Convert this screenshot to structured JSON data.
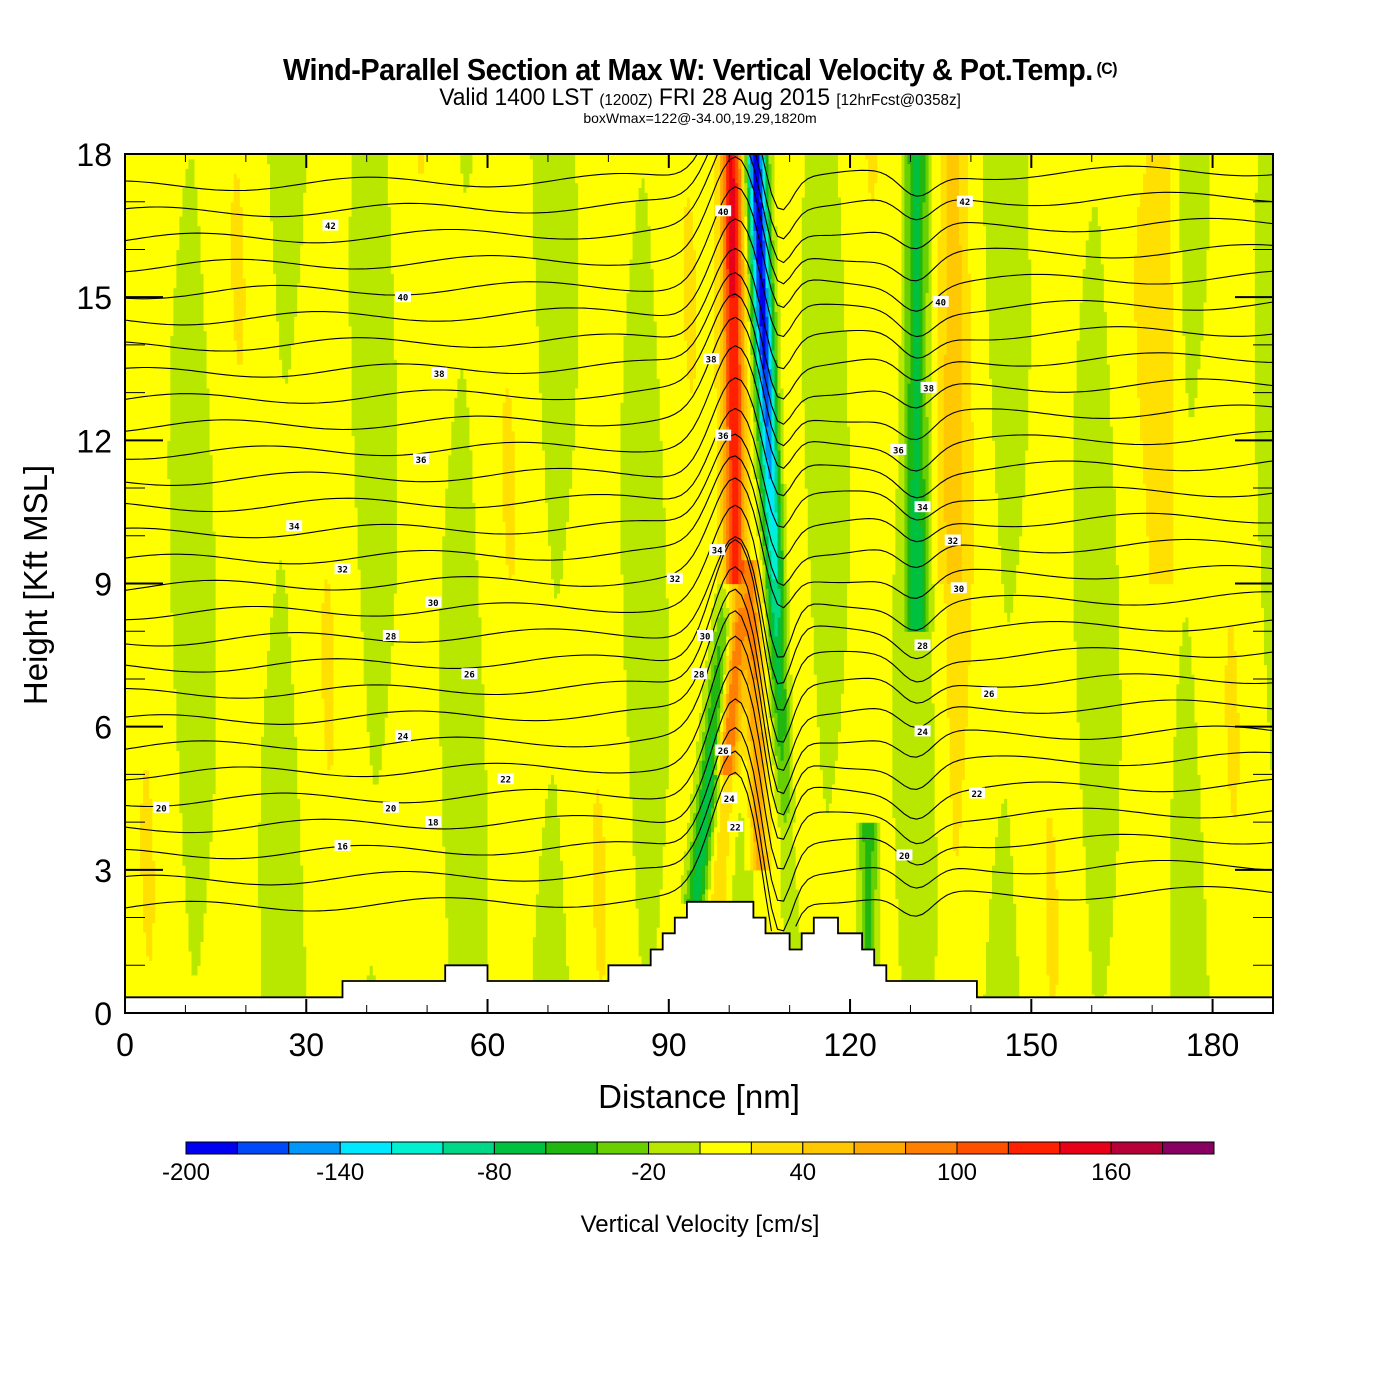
{
  "header": {
    "title": "Wind-Parallel Section at Max W: Vertical Velocity & Pot.Temp.",
    "copyright": "(C)",
    "valid_prefix": "Valid 1400 LST",
    "valid_utc": "(1200Z)",
    "valid_date": "FRI 28 Aug 2015",
    "forecast": "[12hrFcst@0358z]",
    "boxwmax": "boxWmax=122@-34.00,19.29,1820m"
  },
  "chart_data": {
    "type": "heatmap",
    "title": "Wind-Parallel Section at Max W: Vertical Velocity & Pot.Temp.",
    "xlabel": "Distance [nm]",
    "ylabel": "Height [Kft MSL]",
    "xlim": [
      0,
      190
    ],
    "ylim": [
      0,
      18
    ],
    "xticks": [
      0,
      30,
      60,
      90,
      120,
      150,
      180
    ],
    "yticks": [
      0,
      3,
      6,
      9,
      12,
      15,
      18
    ],
    "xtick_labels": [
      "0",
      "30",
      "60",
      "90",
      "120",
      "150",
      "180"
    ],
    "ytick_labels": [
      "0",
      "3",
      "6",
      "9",
      "12",
      "15",
      "18"
    ],
    "colorbar": {
      "label": "Vertical Velocity [cm/s]",
      "levels": [
        -200,
        -180,
        -160,
        -140,
        -120,
        -100,
        -80,
        -60,
        -40,
        -20,
        0,
        20,
        40,
        60,
        80,
        100,
        120,
        140,
        160,
        180,
        200
      ],
      "tick_labels": [
        "-200",
        "-140",
        "-80",
        "-20",
        "40",
        "100",
        "160"
      ],
      "tick_values": [
        -200,
        -140,
        -80,
        -20,
        40,
        100,
        160
      ],
      "colors": [
        "#0000f0",
        "#0048f8",
        "#0098f8",
        "#00e8ff",
        "#00f0d0",
        "#00d888",
        "#00c040",
        "#20b810",
        "#68d000",
        "#b8e800",
        "#ffff00",
        "#ffe000",
        "#ffc800",
        "#ffa800",
        "#ff8000",
        "#ff5000",
        "#ff2000",
        "#e80018",
        "#b80038",
        "#880060"
      ]
    },
    "terrain_kft": {
      "x": [
        0,
        36,
        36,
        53,
        53,
        60,
        60,
        80,
        80,
        87,
        87,
        89,
        89,
        91,
        91,
        93,
        93,
        104,
        104,
        106,
        106,
        110,
        110,
        112,
        112,
        114,
        114,
        118,
        118,
        122,
        122,
        124,
        124,
        126,
        126,
        141,
        141,
        152,
        152,
        190
      ],
      "y": [
        0.33,
        0.33,
        0.67,
        0.67,
        1.0,
        1.0,
        0.67,
        0.67,
        1.0,
        1.0,
        1.33,
        1.33,
        1.67,
        1.67,
        2.0,
        2.0,
        2.33,
        2.33,
        2.0,
        2.0,
        1.67,
        1.67,
        1.33,
        1.33,
        1.67,
        1.67,
        2.0,
        2.0,
        1.67,
        1.67,
        1.33,
        1.33,
        1.0,
        1.0,
        0.67,
        0.67,
        0.33,
        0.33,
        0.33,
        0.33
      ]
    },
    "vertical_velocity_features": [
      {
        "name": "updraft core",
        "x_nm": 100,
        "height_kft": [
          5,
          18
        ],
        "max_cm_s": 130
      },
      {
        "name": "downdraft core",
        "x_nm": 107,
        "height_kft": [
          3,
          18
        ],
        "min_cm_s": -190
      },
      {
        "name": "downdraft band",
        "x_nm": 131,
        "height_kft": [
          9,
          18
        ],
        "min_cm_s": -80
      }
    ],
    "potential_temperature": {
      "units": "C",
      "contour_interval": 1,
      "labels": [
        {
          "value": "42",
          "x": 34,
          "y": 16.5
        },
        {
          "value": "40",
          "x": 46,
          "y": 15.0
        },
        {
          "value": "38",
          "x": 52,
          "y": 13.4
        },
        {
          "value": "36",
          "x": 49,
          "y": 11.6
        },
        {
          "value": "34",
          "x": 28,
          "y": 10.2
        },
        {
          "value": "32",
          "x": 36,
          "y": 9.3
        },
        {
          "value": "30",
          "x": 51,
          "y": 8.6
        },
        {
          "value": "28",
          "x": 44,
          "y": 7.9
        },
        {
          "value": "26",
          "x": 57,
          "y": 7.1
        },
        {
          "value": "24",
          "x": 46,
          "y": 5.8
        },
        {
          "value": "22",
          "x": 63,
          "y": 4.9
        },
        {
          "value": "20",
          "x": 6,
          "y": 4.3
        },
        {
          "value": "20",
          "x": 44,
          "y": 4.3
        },
        {
          "value": "18",
          "x": 51,
          "y": 4.0
        },
        {
          "value": "16",
          "x": 36,
          "y": 3.5
        },
        {
          "value": "40",
          "x": 99,
          "y": 16.8
        },
        {
          "value": "38",
          "x": 97,
          "y": 13.7
        },
        {
          "value": "36",
          "x": 99,
          "y": 12.1
        },
        {
          "value": "34",
          "x": 98,
          "y": 9.7
        },
        {
          "value": "32",
          "x": 91,
          "y": 9.1
        },
        {
          "value": "30",
          "x": 96,
          "y": 7.9
        },
        {
          "value": "28",
          "x": 95,
          "y": 7.1
        },
        {
          "value": "26",
          "x": 99,
          "y": 5.5
        },
        {
          "value": "24",
          "x": 100,
          "y": 4.5
        },
        {
          "value": "22",
          "x": 101,
          "y": 3.9
        },
        {
          "value": "42",
          "x": 139,
          "y": 17.0
        },
        {
          "value": "40",
          "x": 135,
          "y": 14.9
        },
        {
          "value": "38",
          "x": 133,
          "y": 13.1
        },
        {
          "value": "36",
          "x": 128,
          "y": 11.8
        },
        {
          "value": "34",
          "x": 132,
          "y": 10.6
        },
        {
          "value": "32",
          "x": 137,
          "y": 9.9
        },
        {
          "value": "30",
          "x": 138,
          "y": 8.9
        },
        {
          "value": "28",
          "x": 132,
          "y": 7.7
        },
        {
          "value": "26",
          "x": 143,
          "y": 6.7
        },
        {
          "value": "24",
          "x": 132,
          "y": 5.9
        },
        {
          "value": "22",
          "x": 141,
          "y": 4.6
        },
        {
          "value": "20",
          "x": 129,
          "y": 3.3
        }
      ]
    }
  }
}
